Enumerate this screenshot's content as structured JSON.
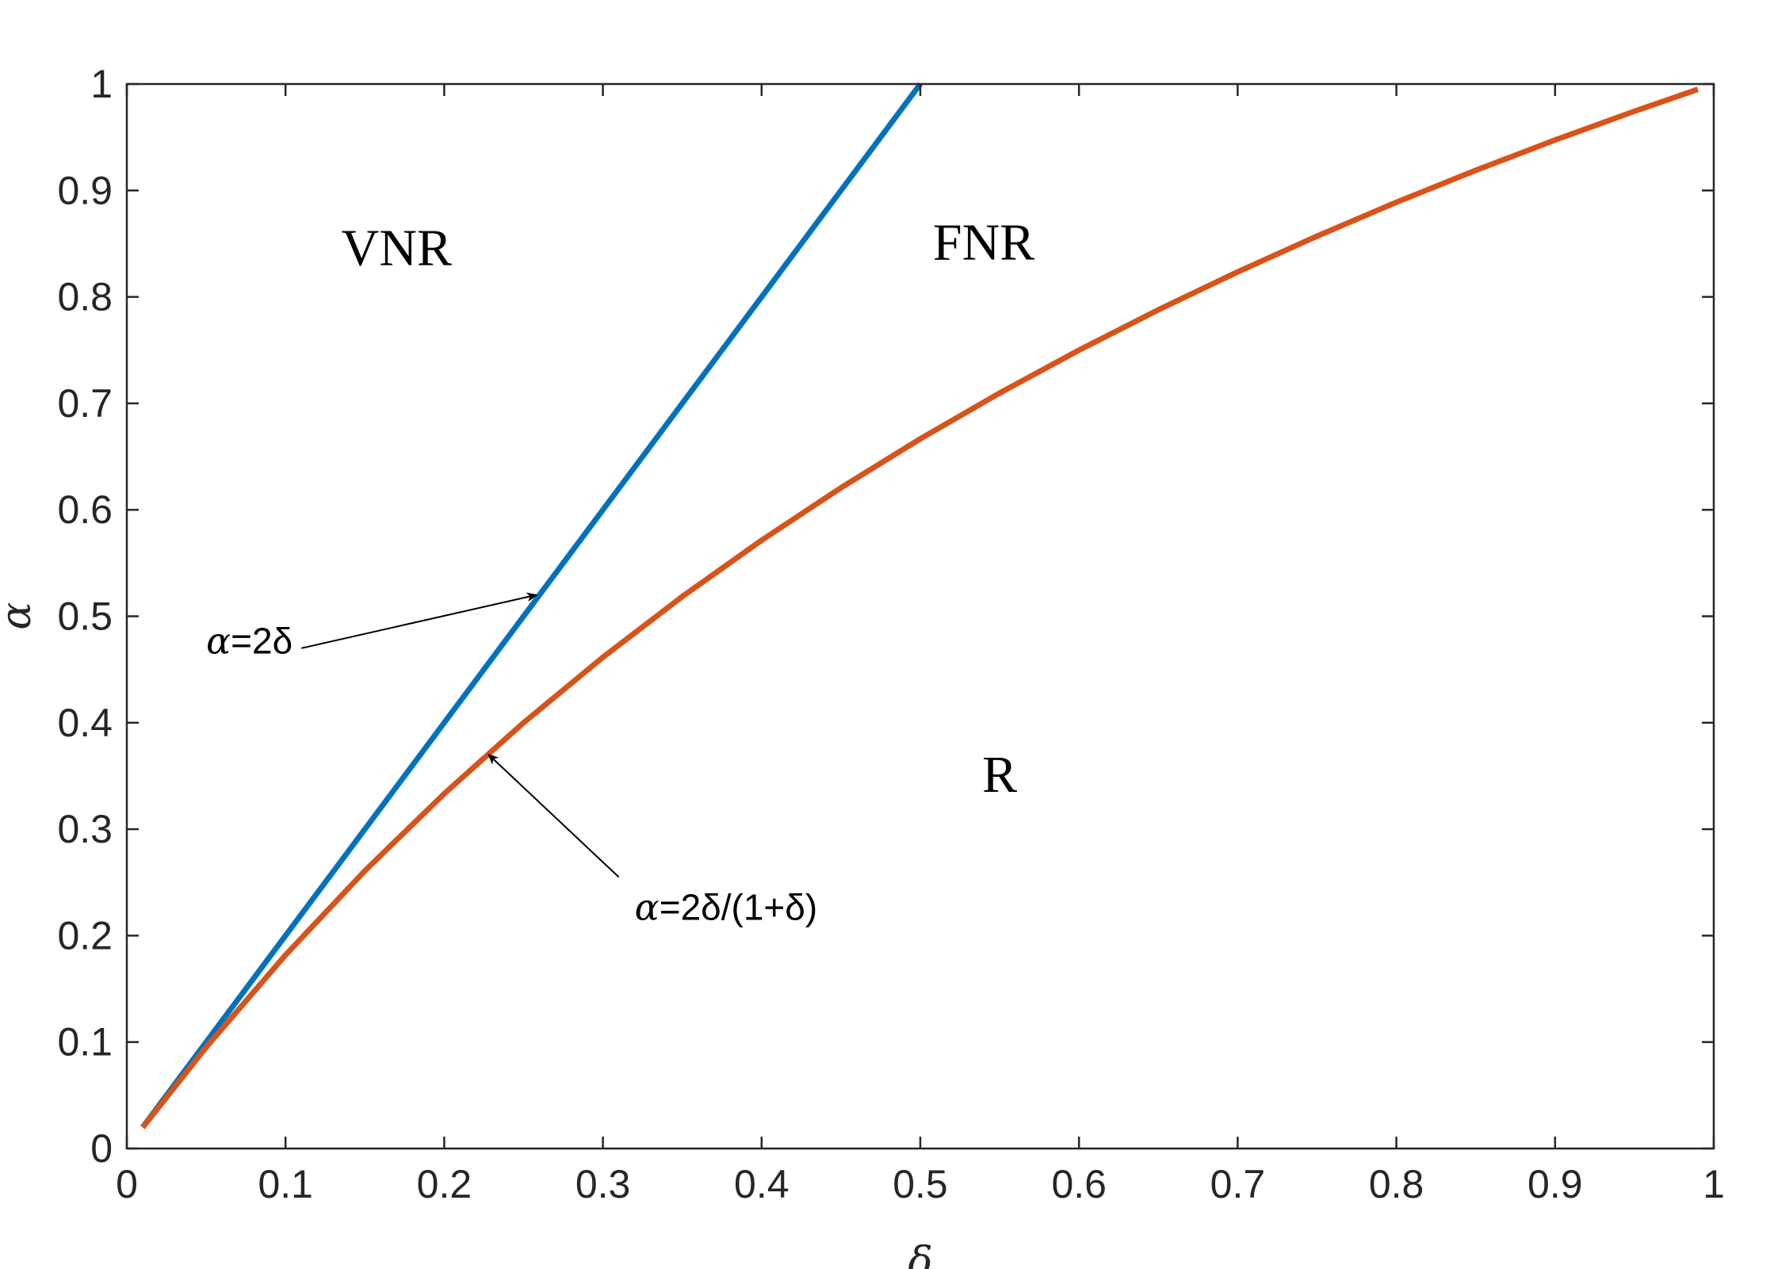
{
  "chart_data": {
    "type": "line",
    "xlabel": "δ",
    "ylabel": "α",
    "xlim": [
      0,
      1
    ],
    "ylim": [
      0,
      1
    ],
    "xticks": [
      "0",
      "0.1",
      "0.2",
      "0.3",
      "0.4",
      "0.5",
      "0.6",
      "0.7",
      "0.8",
      "0.9",
      "1"
    ],
    "yticks": [
      "0",
      "0.1",
      "0.2",
      "0.3",
      "0.4",
      "0.5",
      "0.6",
      "0.7",
      "0.8",
      "0.9",
      "1"
    ],
    "grid": false,
    "box": true,
    "series": [
      {
        "color": "#0072BD",
        "x": [
          0.01,
          0.1,
          0.2,
          0.3,
          0.4,
          0.5
        ],
        "y": [
          0.02,
          0.2,
          0.4,
          0.6,
          0.8,
          1.0
        ]
      },
      {
        "color": "#D95319",
        "x": [
          0.01,
          0.05,
          0.1,
          0.15,
          0.2,
          0.25,
          0.3,
          0.35,
          0.4,
          0.45,
          0.5,
          0.55,
          0.6,
          0.65,
          0.7,
          0.75,
          0.8,
          0.85,
          0.9,
          0.95,
          0.99
        ],
        "y": [
          0.0198,
          0.0952,
          0.1818,
          0.2609,
          0.3333,
          0.4,
          0.4615,
          0.5185,
          0.5714,
          0.6207,
          0.6667,
          0.7097,
          0.75,
          0.7879,
          0.8235,
          0.8571,
          0.8889,
          0.9189,
          0.9474,
          0.9744,
          0.995
        ]
      }
    ],
    "region_labels": [
      {
        "text": "VNR",
        "x": 0.17,
        "y": 0.83
      },
      {
        "text": "FNR",
        "x": 0.54,
        "y": 0.835
      },
      {
        "text": "R",
        "x": 0.55,
        "y": 0.335
      }
    ],
    "annotations": [
      {
        "sym": "α",
        "rest": "=2δ",
        "x": 0.05,
        "y": 0.465,
        "arrow_from": [
          0.11,
          0.47
        ],
        "arrow_to": [
          0.258,
          0.52
        ]
      },
      {
        "sym": "α",
        "rest": "=2δ/(1+δ)",
        "x": 0.32,
        "y": 0.215,
        "arrow_from": [
          0.31,
          0.255
        ],
        "arrow_to": [
          0.228,
          0.37
        ]
      }
    ]
  }
}
